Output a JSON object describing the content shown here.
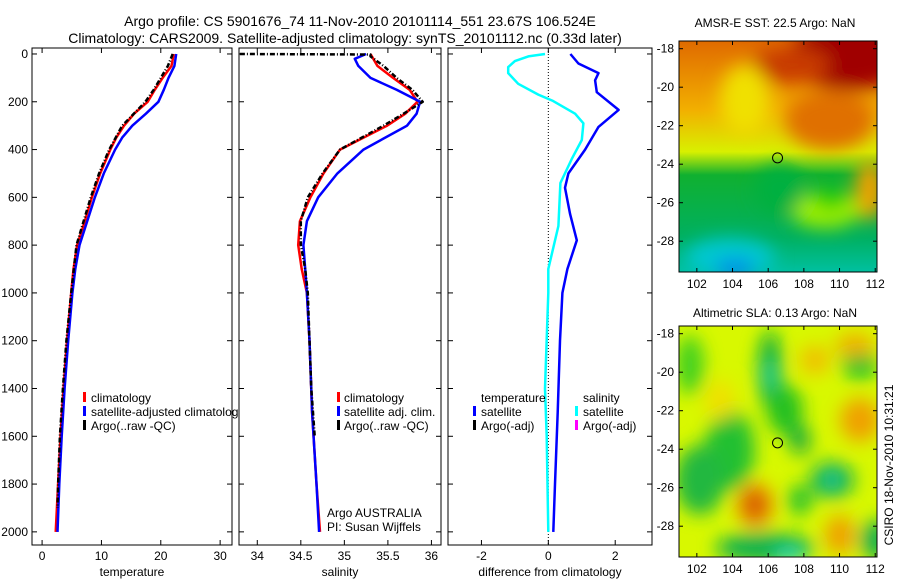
{
  "title_line1": "Argo profile: CS 5901676_74 11-Nov-2010 20101114_551 23.67S 106.524E",
  "title_line2": "Climatology: CARS2009. Satellite-adjusted climatology: synTS_20101112.nc (0.33d later)",
  "footer_stamp": "CSIRO 18-Nov-2010 10:31:21",
  "colors": {
    "climatology": "#ff0000",
    "satellite": "#0000ff",
    "argo": "#000000",
    "sal_satellite": "#00ffff",
    "sal_argo": "#ff00ff"
  },
  "chart_data": [
    {
      "type": "line",
      "id": "temperature",
      "xlabel": "temperature",
      "ylabel": "",
      "xlim": [
        -1.7,
        32
      ],
      "ylim": [
        2055,
        -25
      ],
      "xticks": [
        0,
        10,
        20,
        30
      ],
      "yticks": [
        0,
        200,
        400,
        600,
        800,
        1000,
        1200,
        1400,
        1600,
        1800,
        2000
      ],
      "legend": [
        "climatology",
        "satellite-adjusted climatology",
        "Argo(..raw -QC)"
      ],
      "series": [
        {
          "name": "climatology",
          "color": "#ff0000",
          "depth": [
            0,
            50,
            100,
            150,
            200,
            250,
            300,
            350,
            400,
            500,
            600,
            700,
            800,
            900,
            1000,
            1200,
            1400,
            1600,
            1800,
            2000
          ],
          "values": [
            22.2,
            21.8,
            20.3,
            19,
            17.8,
            15.5,
            13.8,
            12.5,
            11.5,
            9.8,
            8.4,
            7.2,
            5.9,
            5.3,
            4.9,
            4.2,
            3.6,
            3.1,
            2.7,
            2.3
          ]
        },
        {
          "name": "satellite-adjusted climatology",
          "color": "#0000ff",
          "depth": [
            0,
            50,
            100,
            150,
            200,
            250,
            300,
            350,
            400,
            500,
            600,
            700,
            800,
            900,
            1000,
            1200,
            1400,
            1600,
            1800,
            2000
          ],
          "values": [
            22.6,
            22.3,
            21.3,
            20.5,
            19.6,
            17.5,
            15.2,
            13.5,
            12.3,
            10.4,
            8.9,
            7.6,
            6.3,
            5.6,
            5.1,
            4.4,
            3.8,
            3.3,
            2.9,
            2.6
          ]
        },
        {
          "name": "Argo(..raw -QC)",
          "color": "#000000",
          "dashed": true,
          "depth": [
            0,
            50,
            100,
            150,
            200,
            300,
            400,
            500,
            600,
            700,
            800,
            1000,
            1200,
            1400,
            1600,
            1800,
            1900
          ],
          "values": [
            22,
            21.2,
            20,
            18.8,
            17.4,
            13.5,
            11.3,
            9.6,
            8.2,
            7,
            5.8,
            4.9,
            4.1,
            3.5,
            3.0,
            2.7,
            2.6
          ]
        }
      ]
    },
    {
      "type": "line",
      "id": "salinity",
      "xlabel": "salinity",
      "xlim": [
        33.79,
        36.11
      ],
      "ylim": [
        2055,
        -25
      ],
      "xticks": [
        34,
        34.5,
        35,
        35.5,
        36
      ],
      "legend": [
        "climatology",
        "satellite adj. clim.",
        "Argo(..raw -QC)"
      ],
      "annotation": [
        "Argo AUSTRALIA",
        "PI: Susan Wijffels"
      ],
      "series": [
        {
          "name": "climatology",
          "color": "#ff0000",
          "depth": [
            0,
            50,
            100,
            150,
            200,
            250,
            300,
            400,
            500,
            600,
            700,
            800,
            900,
            1000,
            1200,
            1500,
            1800,
            2000
          ],
          "values": [
            35.3,
            35.38,
            35.56,
            35.75,
            35.84,
            35.7,
            35.49,
            34.95,
            34.76,
            34.61,
            34.49,
            34.47,
            34.51,
            34.57,
            34.6,
            34.63,
            34.68,
            34.72
          ]
        },
        {
          "name": "satellite adj. clim.",
          "color": "#0000ff",
          "depth": [
            0,
            20,
            50,
            100,
            150,
            200,
            250,
            300,
            400,
            500,
            600,
            700,
            800,
            900,
            1000,
            1200,
            1500,
            1800,
            2000
          ],
          "values": [
            35.25,
            35.12,
            35.16,
            35.3,
            35.6,
            35.87,
            35.83,
            35.72,
            35.22,
            34.92,
            34.7,
            34.57,
            34.53,
            34.55,
            34.57,
            34.6,
            34.63,
            34.68,
            34.71
          ]
        },
        {
          "name": "Argo(..raw -QC)",
          "color": "#000000",
          "dashed": true,
          "depth": [
            0,
            2,
            10,
            50,
            100,
            150,
            200,
            250,
            300,
            400,
            500,
            600,
            700,
            800,
            900,
            1000,
            1200,
            1400,
            1600
          ],
          "values": [
            33.8,
            35.3,
            35.3,
            35.45,
            35.6,
            35.78,
            35.9,
            35.68,
            35.45,
            34.95,
            34.75,
            34.58,
            34.5,
            34.5,
            34.55,
            34.58,
            34.6,
            34.62,
            34.66
          ]
        }
      ]
    },
    {
      "type": "line",
      "id": "difference",
      "xlabel": "difference from climatology",
      "xlim": [
        -3,
        3.1
      ],
      "ylim": [
        2055,
        -25
      ],
      "xticks": [
        -2,
        0,
        2
      ],
      "legend_groups": [
        {
          "title": "temperature",
          "items": [
            "satellite",
            "Argo(-adj)"
          ]
        },
        {
          "title": "salinity",
          "items": [
            "satellite",
            "Argo(-adj)"
          ]
        }
      ],
      "series": [
        {
          "name": "temperature satellite",
          "color": "#0000ff",
          "depth": [
            0,
            40,
            80,
            110,
            160,
            234,
            305,
            400,
            500,
            560,
            670,
            780,
            900,
            1000,
            1200,
            1500,
            1800,
            2000
          ],
          "values": [
            0.66,
            0.9,
            1.5,
            1.4,
            1.45,
            2.1,
            1.5,
            1.1,
            0.6,
            0.5,
            0.65,
            0.85,
            0.57,
            0.42,
            0.35,
            0.28,
            0.2,
            0.15
          ]
        },
        {
          "name": "salinity satellite",
          "color": "#00ffff",
          "depth": [
            0,
            10,
            30,
            55,
            80,
            125,
            170,
            195,
            250,
            290,
            360,
            440,
            540,
            720,
            900,
            1000,
            1400,
            1600,
            2000
          ],
          "values": [
            -0.1,
            -0.6,
            -1.0,
            -1.2,
            -1.2,
            -0.9,
            -0.3,
            0.12,
            0.8,
            1.05,
            1.0,
            0.7,
            0.36,
            0.3,
            0.0,
            0.0,
            -0.1,
            -0.05,
            0.0
          ]
        }
      ]
    },
    {
      "type": "heatmap",
      "id": "sst-map",
      "title": "AMSR-E SST: 22.5 Argo: NaN",
      "xlim": [
        101,
        112.1
      ],
      "ylim": [
        -29.6,
        -17.6
      ],
      "xticks": [
        102,
        104,
        106,
        108,
        110,
        112
      ],
      "yticks": [
        -18,
        -20,
        -22,
        -24,
        -26,
        -28
      ],
      "marker": {
        "lon": 106.524,
        "lat": -23.67
      }
    },
    {
      "type": "heatmap",
      "id": "sla-map",
      "title": "Altimetric SLA: 0.13 Argo: NaN",
      "xlim": [
        101,
        112.1
      ],
      "ylim": [
        -29.6,
        -17.6
      ],
      "xticks": [
        102,
        104,
        106,
        108,
        110,
        112
      ],
      "yticks": [
        -18,
        -20,
        -22,
        -24,
        -26,
        -28
      ],
      "marker": {
        "lon": 106.524,
        "lat": -23.67
      }
    }
  ]
}
